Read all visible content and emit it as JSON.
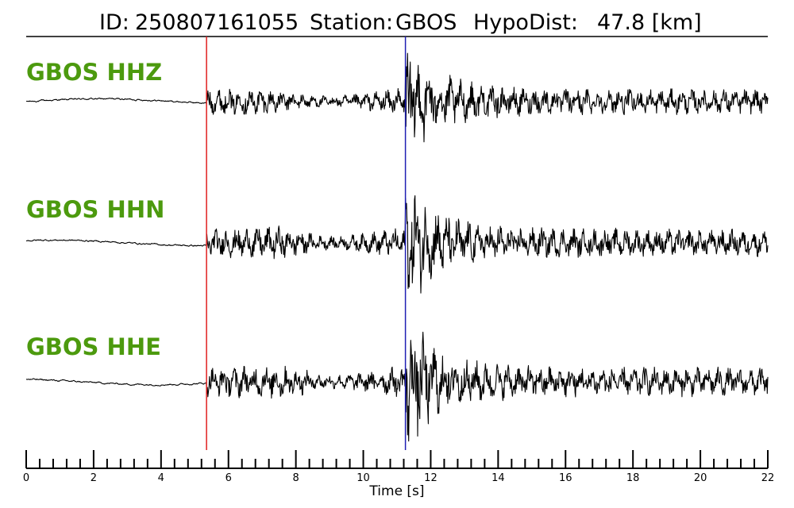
{
  "header": {
    "id_label": "ID:",
    "id_value": "250807161055",
    "station_label": "Station:",
    "station_value": "GBOS",
    "hypodist_label": "HypoDist:",
    "hypodist_value": "47.8 [km]"
  },
  "colors": {
    "trace": "#000000",
    "channel_label": "#4c9a0e",
    "p_pick": "#e02020",
    "s_pick": "#1f1fb4"
  },
  "chart_data": {
    "type": "line",
    "title": "ID: 250807161055   Station: GBOS   HypoDist:    47.8 [km]",
    "xlabel": "Time [s]",
    "ylabel": "",
    "xlim": [
      0,
      22
    ],
    "x_major_ticks": [
      0,
      2,
      4,
      6,
      8,
      10,
      12,
      14,
      16,
      18,
      20,
      22
    ],
    "x_minor_step": 0.4,
    "picks": [
      {
        "phase": "P",
        "time": 5.35
      },
      {
        "phase": "S",
        "time": 11.25
      }
    ],
    "series": [
      {
        "name": "GBOS HHZ"
      },
      {
        "name": "GBOS HHN"
      },
      {
        "name": "GBOS HHE"
      }
    ]
  }
}
